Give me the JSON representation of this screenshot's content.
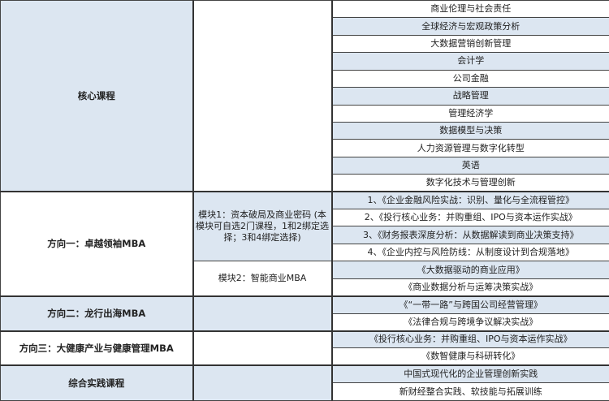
{
  "colors": {
    "row_blue": "#dce6f1",
    "row_white": "#ffffff",
    "border": "#333333"
  },
  "core": {
    "label": "核心课程",
    "courses": [
      "商业伦理与社会责任",
      "全球经济与宏观政策分析",
      "大数据营销创新管理",
      "会计学",
      "公司金融",
      "战略管理",
      "管理经济学",
      "数据模型与决策",
      "人力资源管理与数字化转型",
      "英语",
      "数字化技术与管理创新"
    ]
  },
  "dir1": {
    "label": "方向一：卓越领袖MBA",
    "module1": {
      "label": "模块1：资本破局及商业密码 (本模块可自选2门课程，1和2绑定选择；3和4绑定选择)",
      "courses": [
        "1、《企业金融风险实战：识别、量化与全流程管控》",
        "2、《投行核心业务：并购重组、IPO与资本运作实战》",
        "3、《财务报表深度分析：从数据解读到商业决策支持》",
        "4、《企业内控与风险防线：从制度设计到合规落地》"
      ]
    },
    "module2": {
      "label": "模块2：智能商业MBA",
      "courses": [
        "《大数据驱动的商业应用》",
        "《商业数据分析与运筹决策实战》"
      ]
    }
  },
  "dir2": {
    "label": "方向二：龙行出海MBA",
    "courses": [
      "《“一带一路”与跨国公司经营管理》",
      "《法律合规与跨境争议解决实战》"
    ]
  },
  "dir3": {
    "label": "方向三：大健康产业与健康管理MBA",
    "courses": [
      "《投行核心业务：并购重组、IPO与资本运作实战》",
      "《数智健康与科研转化》"
    ]
  },
  "practice": {
    "label": "综合实践课程",
    "courses": [
      "中国式现代化的企业管理创新实践",
      "新财经整合实践、软技能与拓展训练"
    ]
  }
}
